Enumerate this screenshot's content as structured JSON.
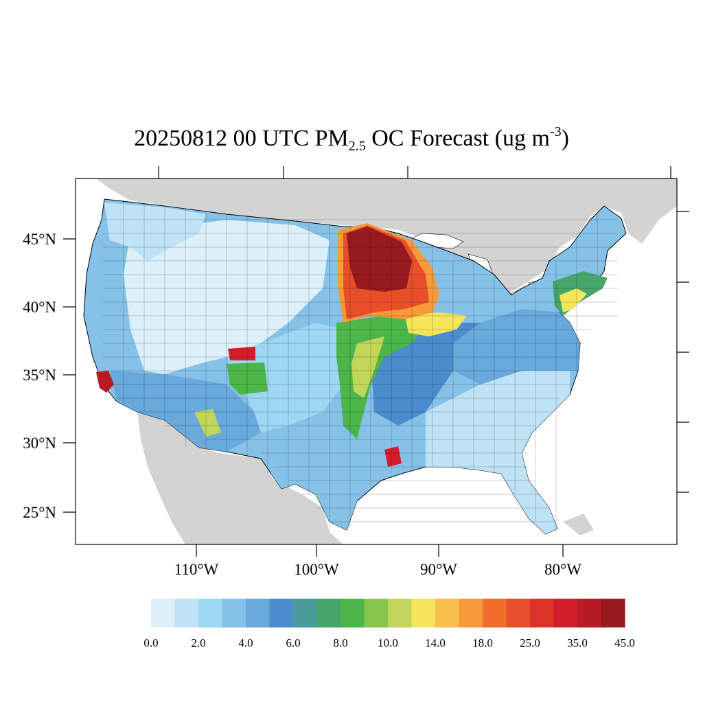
{
  "title": {
    "prefix": "20250812 00 UTC PM",
    "subscript": "2.5",
    "middle": " OC Forecast (ug m",
    "superscript": "-3",
    "suffix": ")"
  },
  "lat_labels": [
    "45°N",
    "40°N",
    "35°N",
    "30°N",
    "25°N"
  ],
  "lon_labels": [
    "110°W",
    "100°W",
    "90°W",
    "80°W"
  ],
  "colorbar": {
    "colors": [
      "#dcf0fa",
      "#bfe3f6",
      "#9dd7f4",
      "#86c2e8",
      "#69a9dc",
      "#4a8ccc",
      "#4a9c9c",
      "#46a66c",
      "#4cb64a",
      "#86c54e",
      "#c2d75a",
      "#f5e55a",
      "#f7bf4c",
      "#f79a3c",
      "#f26c2c",
      "#e84e2a",
      "#dc3228",
      "#d21e2a",
      "#b81c22",
      "#961a1e"
    ],
    "labels": [
      "0.0",
      "2.0",
      "4.0",
      "6.0",
      "8.0",
      "10.0",
      "14.0",
      "18.0",
      "25.0",
      "35.0",
      "45.0"
    ]
  },
  "chart_data": {
    "type": "map",
    "title": "20250812 00 UTC PM2.5 OC Forecast (ug m-3)",
    "variable": "PM2.5 organic carbon",
    "units": "ug m-3",
    "lat_ticks": [
      45,
      40,
      35,
      30,
      25
    ],
    "lon_ticks": [
      -110,
      -100,
      -90,
      -80
    ],
    "color_levels": [
      0,
      2,
      4,
      6,
      8,
      10,
      14,
      18,
      25,
      35,
      45
    ]
  }
}
